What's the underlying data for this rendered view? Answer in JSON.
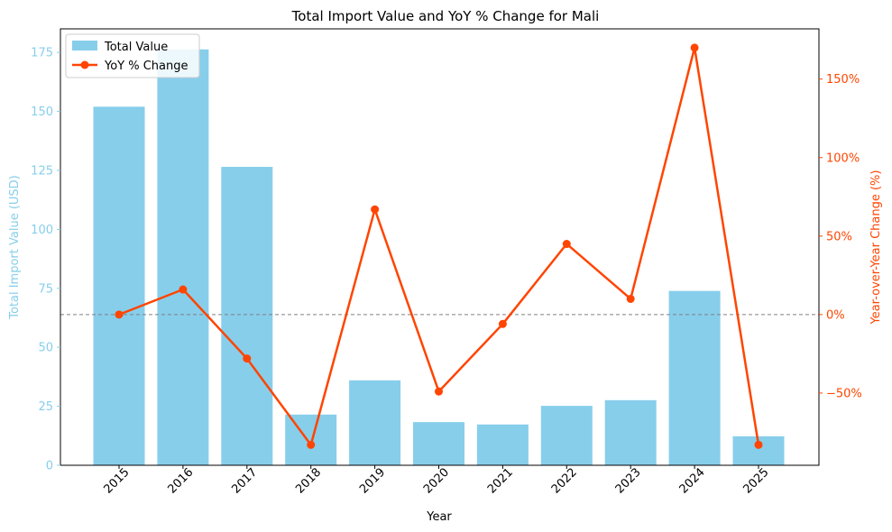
{
  "chart_data": {
    "type": "bar",
    "title": "Total Import Value and YoY % Change for Mali",
    "xlabel": "Year",
    "ylabel": "Total Import Value (USD)",
    "y2label": "Year-over-Year Change (%)",
    "categories": [
      "2015",
      "2016",
      "2017",
      "2018",
      "2019",
      "2020",
      "2021",
      "2022",
      "2023",
      "2024",
      "2025"
    ],
    "series": [
      {
        "name": "Total Value",
        "type": "bar",
        "axis": "left",
        "color": "#87ceeb",
        "values": [
          152.0,
          176.3,
          126.5,
          21.5,
          36.0,
          18.3,
          17.3,
          25.2,
          27.6,
          73.9,
          12.3
        ]
      },
      {
        "name": "YoY % Change",
        "type": "line",
        "axis": "right",
        "color": "#ff4500",
        "values": [
          0,
          16,
          -28,
          -83,
          67,
          -49,
          -6,
          45,
          10,
          170,
          -83
        ]
      }
    ],
    "ylim": [
      0,
      185
    ],
    "y2lim": [
      -96,
      182
    ],
    "yticks": [
      0,
      25,
      50,
      75,
      100,
      125,
      150,
      175
    ],
    "y2ticks": [
      -50,
      0,
      50,
      100,
      150
    ],
    "y2tick_labels": [
      "−50%",
      "0%",
      "50%",
      "100%",
      "150%"
    ],
    "reference_line": 0,
    "legend_position": "top-left",
    "grid": false,
    "left_axis_color": "#87ceeb",
    "right_axis_color": "#ff4500"
  }
}
